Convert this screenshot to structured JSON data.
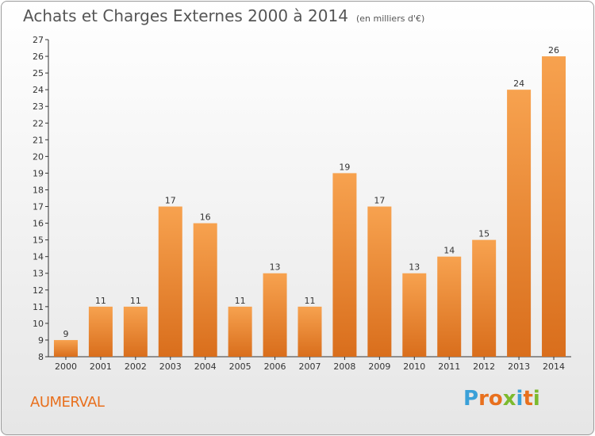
{
  "title": "Achats et Charges Externes 2000 à 2014",
  "subtitle": "(en milliers d'€)",
  "commune": "AUMERVAL",
  "logo": {
    "text": "Proxiti",
    "letter_colors": [
      "#3aa0d8",
      "#e8701e",
      "#e8701e",
      "#7cba2e",
      "#3aa0d8",
      "#e8701e",
      "#7cba2e"
    ]
  },
  "colors": {
    "bar_light": "#f7a24f",
    "bar_dark": "#d96e1c",
    "axis": "#333333",
    "grid": "#d0d0d0"
  },
  "chart_data": {
    "type": "bar",
    "categories": [
      "2000",
      "2001",
      "2002",
      "2003",
      "2004",
      "2005",
      "2006",
      "2007",
      "2008",
      "2009",
      "2010",
      "2011",
      "2012",
      "2013",
      "2014"
    ],
    "values": [
      9,
      11,
      11,
      17,
      16,
      11,
      13,
      11,
      19,
      17,
      13,
      14,
      15,
      24,
      26
    ],
    "ylim": [
      8,
      27
    ],
    "yticks": [
      8,
      9,
      10,
      11,
      12,
      13,
      14,
      15,
      16,
      17,
      18,
      19,
      20,
      21,
      22,
      23,
      24,
      25,
      26,
      27
    ],
    "title": "Achats et Charges Externes 2000 à 2014",
    "xlabel": "",
    "ylabel": "",
    "grid": false,
    "legend": "none"
  }
}
